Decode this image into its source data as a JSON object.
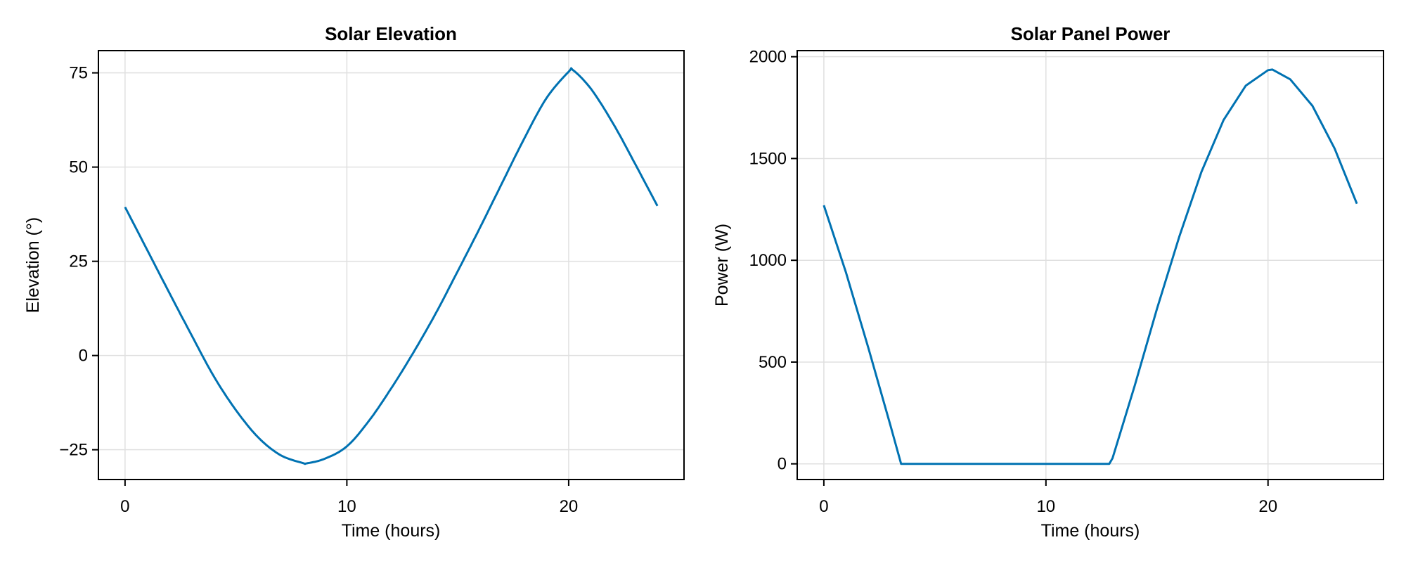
{
  "figure": {
    "background": "#ffffff",
    "line_color": "#0072b2",
    "grid_color": "#e0e0e0"
  },
  "chart_data": [
    {
      "type": "line",
      "title": "Solar Elevation",
      "xlabel": "Time (hours)",
      "ylabel": "Elevation (°)",
      "xlim": [
        -1.2,
        25.2
      ],
      "ylim": [
        -32.9,
        80.9
      ],
      "xticks": [
        0,
        10,
        20
      ],
      "yticks": [
        -25,
        0,
        25,
        50,
        75
      ],
      "ytick_labels": [
        "−25",
        "0",
        "25",
        "50",
        "75"
      ],
      "grid": true,
      "legend": null,
      "series": [
        {
          "name": "Elevation",
          "color": "#0072b2",
          "x": [
            0,
            1,
            2,
            3,
            4,
            5,
            6,
            7,
            8,
            8.2,
            9,
            10,
            11,
            12,
            13,
            14,
            15,
            16,
            17,
            18,
            19,
            20,
            20.2,
            21,
            22,
            23,
            24
          ],
          "y": [
            39.4,
            28.0,
            16.6,
            5.4,
            -5.5,
            -14.5,
            -21.7,
            -26.4,
            -28.5,
            -28.6,
            -27.4,
            -24.1,
            -17.3,
            -8.7,
            0.8,
            11.1,
            22.4,
            33.9,
            45.8,
            57.6,
            68.3,
            75.3,
            75.7,
            70.8,
            61.6,
            50.8,
            39.7
          ]
        }
      ]
    },
    {
      "type": "line",
      "title": "Solar Panel Power",
      "xlabel": "Time (hours)",
      "ylabel": "Power (W)",
      "xlim": [
        -1.2,
        25.2
      ],
      "ylim": [
        -77,
        2030
      ],
      "xticks": [
        0,
        10,
        20
      ],
      "yticks": [
        0,
        500,
        1000,
        1500,
        2000
      ],
      "ytick_labels": [
        "0",
        "500",
        "1000",
        "1500",
        "2000"
      ],
      "grid": true,
      "legend": null,
      "series": [
        {
          "name": "Power",
          "color": "#0072b2",
          "x": [
            0,
            1,
            2,
            3,
            3.48,
            4,
            6,
            8,
            10,
            12,
            12.85,
            13,
            14,
            15,
            16,
            17,
            18,
            19,
            20,
            20.2,
            21,
            22,
            23,
            24
          ],
          "y": [
            1270,
            939,
            571,
            188,
            0,
            0,
            0,
            0,
            0,
            0,
            0,
            28,
            385,
            762,
            1115,
            1434,
            1689,
            1858,
            1934,
            1937,
            1889,
            1759,
            1549,
            1278
          ]
        }
      ]
    }
  ]
}
